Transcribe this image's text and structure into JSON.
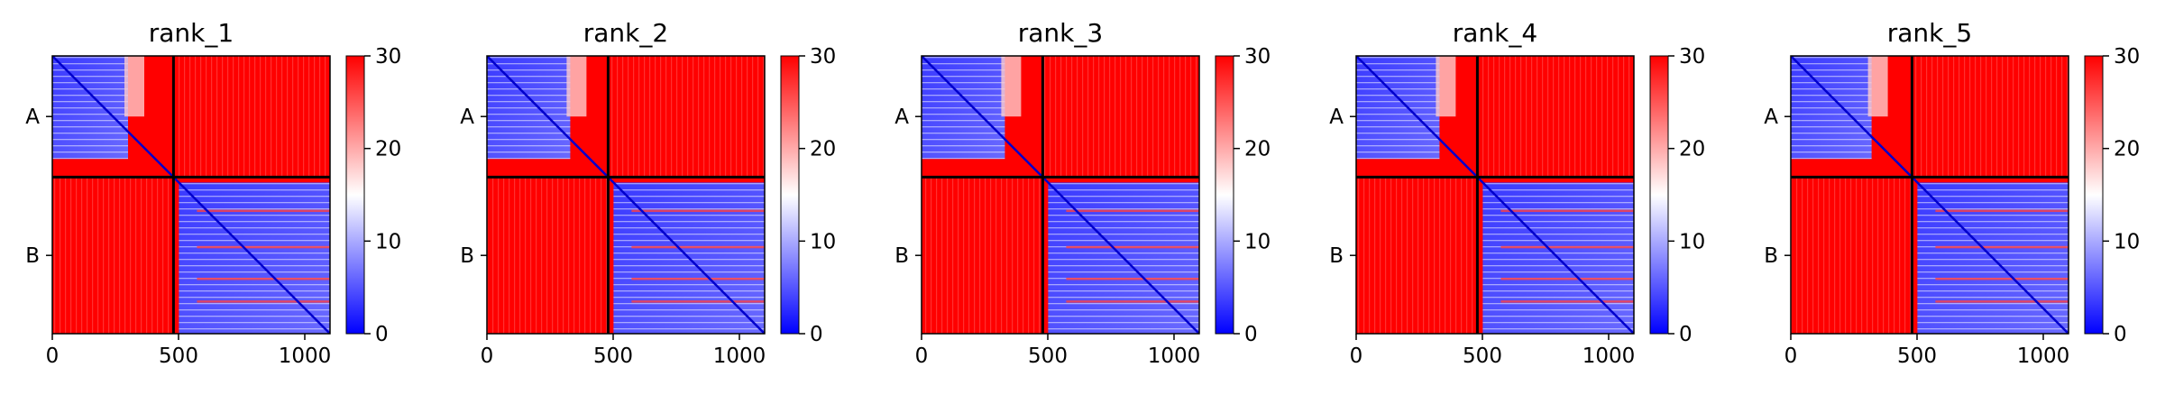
{
  "chart_data": {
    "type": "heatmap",
    "colormap": {
      "name": "bwr",
      "low_color": "#0000ff",
      "mid_color": "#ffffff",
      "high_color": "#ff0000",
      "vmin": 0,
      "vmax": 30,
      "ticks": [
        0,
        10,
        20,
        30
      ],
      "tick_labels": [
        "0",
        "10",
        "20",
        "30"
      ]
    },
    "matrix_size": 1100,
    "chain_boundary": 480,
    "chains": [
      {
        "label": "A",
        "start": 0,
        "end": 480
      },
      {
        "label": "B",
        "start": 480,
        "end": 1100
      }
    ],
    "x_ticks": [
      0,
      500,
      1000
    ],
    "x_tick_labels": [
      "0",
      "500",
      "1000"
    ],
    "panels": [
      {
        "title": "rank_1",
        "intra_A_blue_extent": 300,
        "intra_B_blue_start": 480,
        "intra_B_blue_end": 1100
      },
      {
        "title": "rank_2",
        "intra_A_blue_extent": 330,
        "intra_B_blue_start": 480,
        "intra_B_blue_end": 1100
      },
      {
        "title": "rank_3",
        "intra_A_blue_extent": 330,
        "intra_B_blue_start": 480,
        "intra_B_blue_end": 1100
      },
      {
        "title": "rank_4",
        "intra_A_blue_extent": 330,
        "intra_B_blue_start": 480,
        "intra_B_blue_end": 1100
      },
      {
        "title": "rank_5",
        "intra_A_blue_extent": 320,
        "intra_B_blue_start": 480,
        "intra_B_blue_end": 1100
      }
    ]
  }
}
